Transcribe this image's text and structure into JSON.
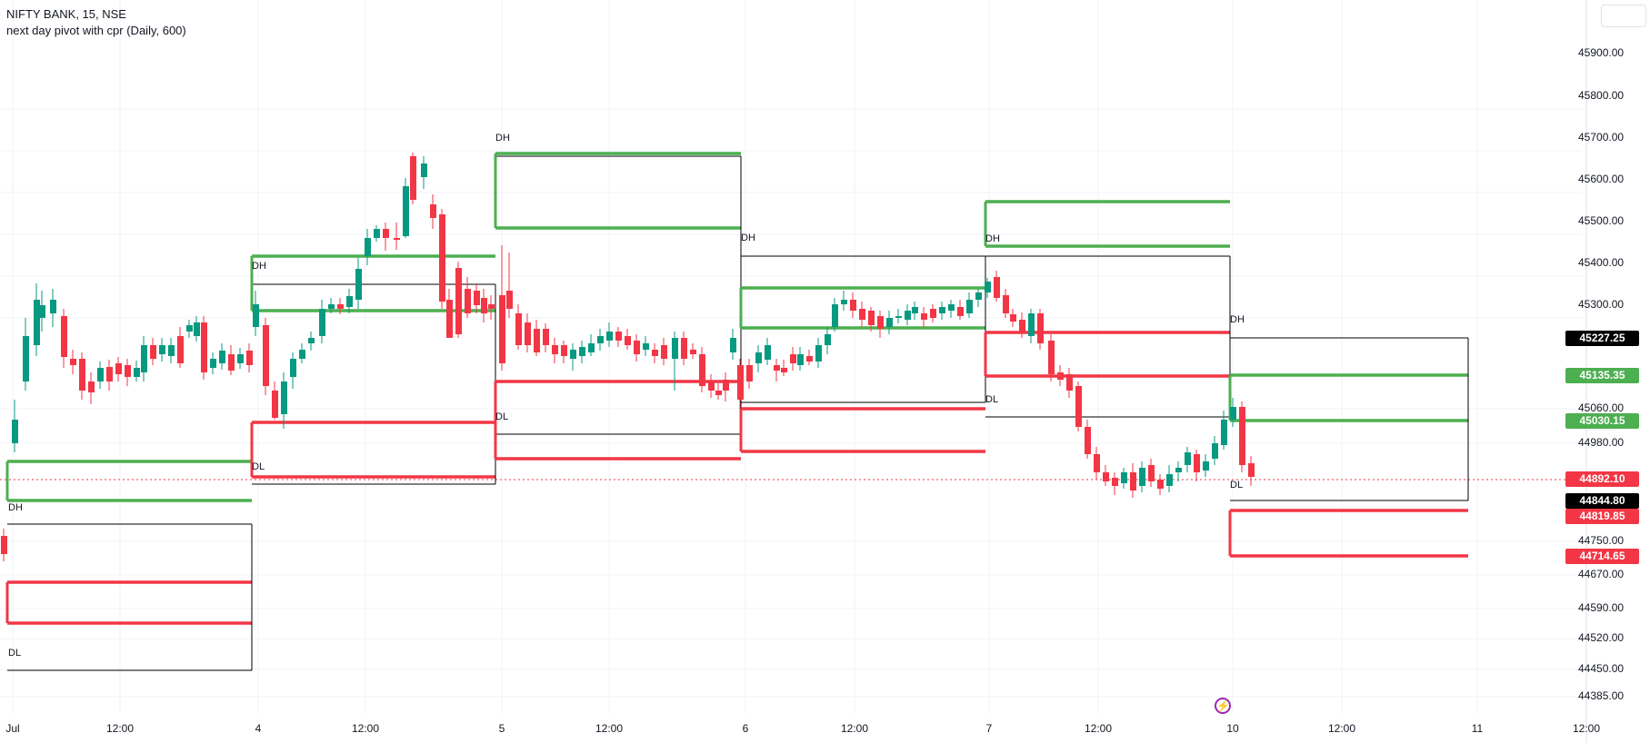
{
  "header": {
    "symbol_line": "NIFTY BANK, 15, NSE",
    "indicator_line": "next day pivot with cpr (Daily, 600)"
  },
  "colors": {
    "green": "#4caf50",
    "red": "#f23645",
    "candle_up": "#089981",
    "candle_down": "#f23645",
    "black": "#000000",
    "grid": "#f0f3fa"
  },
  "y_axis": {
    "labels": [
      "45900.00",
      "45800.00",
      "45700.00",
      "45600.00",
      "45500.00",
      "45400.00",
      "45300.00",
      "45060.00",
      "44980.00",
      "44750.00",
      "44670.00",
      "44590.00",
      "44520.00",
      "44450.00",
      "44385.00"
    ]
  },
  "x_axis": {
    "labels": [
      "Jul",
      "12:00",
      "4",
      "12:00",
      "5",
      "12:00",
      "6",
      "12:00",
      "7",
      "12:00",
      "10",
      "12:00",
      "11",
      "12:00"
    ]
  },
  "price_badges": {
    "dh_level": "45227.25",
    "green_1": "45135.35",
    "green_2": "45030.15",
    "last_price": "44892.10",
    "dl_level": "44844.80",
    "red_1": "44819.85",
    "red_2": "44714.65"
  },
  "marks": {
    "dh": "DH",
    "dl": "DL"
  },
  "icons": {
    "replay": "lightning-icon"
  }
}
